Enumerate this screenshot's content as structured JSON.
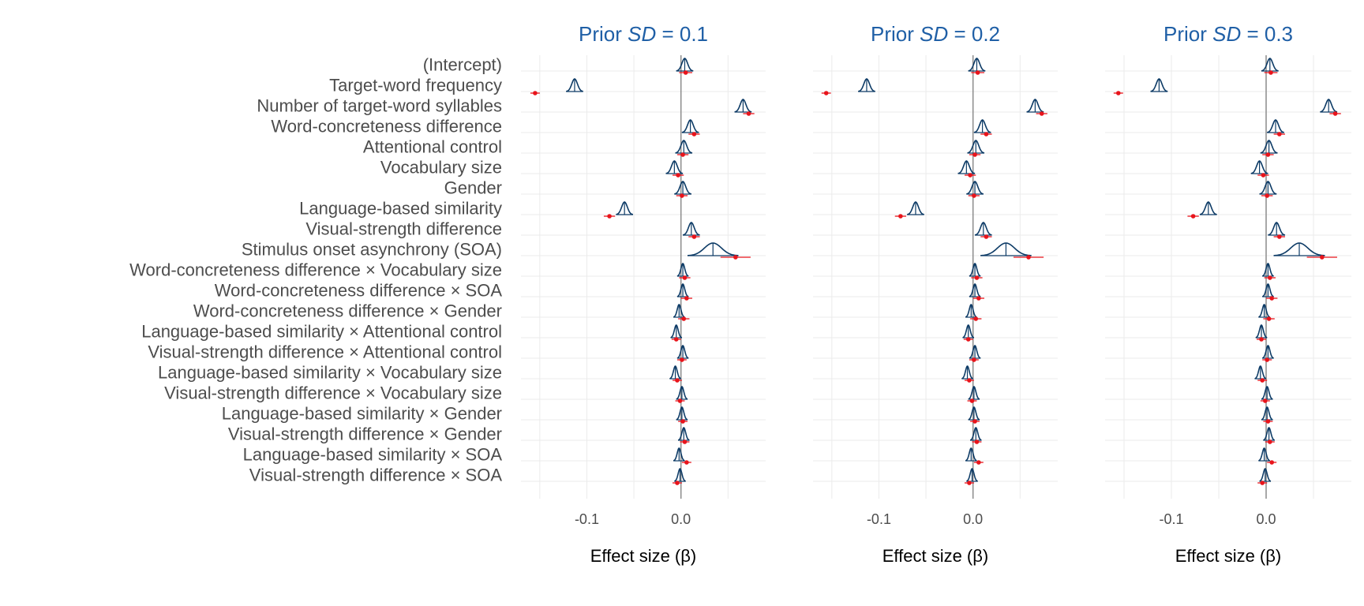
{
  "chart_data": {
    "type": "forest-density",
    "xlabel": "Effect size (β)",
    "x_ticks": [
      -0.1,
      0.0
    ],
    "x_tick_labels": [
      "-0.1",
      "0.0"
    ],
    "xlim": [
      -0.17,
      0.09
    ],
    "grid": true,
    "reference_line_x": 0,
    "colors": {
      "posterior": "#0d3b66",
      "point_estimate": "#e8141b",
      "title": "#1f5fa6",
      "grid": "#ebebeb",
      "zero_line": "#8c8c8c"
    },
    "terms": [
      "(Intercept)",
      "Target-word frequency",
      "Number of target-word syllables",
      "Word-concreteness difference",
      "Attentional control",
      "Vocabulary size",
      "Gender",
      "Language-based similarity",
      "Visual-strength difference",
      "Stimulus onset asynchrony (SOA)",
      "Word-concreteness difference × Vocabulary size",
      "Word-concreteness difference × SOA",
      "Word-concreteness difference × Gender",
      "Language-based similarity × Attentional control",
      "Visual-strength difference × Attentional control",
      "Language-based similarity × Vocabulary size",
      "Visual-strength difference × Vocabulary size",
      "Language-based similarity × Gender",
      "Visual-strength difference × Gender",
      "Language-based similarity × SOA",
      "Visual-strength difference × SOA"
    ],
    "panels": [
      {
        "title_prefix": "Prior ",
        "title_italic": "SD",
        "title_suffix": " = 0.1",
        "posterior_mean": [
          0.004,
          -0.113,
          0.066,
          0.01,
          0.003,
          -0.007,
          0.002,
          -0.06,
          0.011,
          0.034,
          0.002,
          0.002,
          -0.002,
          -0.005,
          0.002,
          -0.006,
          0.001,
          0.001,
          0.003,
          -0.002,
          -0.001
        ],
        "posterior_sd": [
          0.003,
          0.003,
          0.003,
          0.003,
          0.003,
          0.003,
          0.003,
          0.003,
          0.003,
          0.009,
          0.002,
          0.002,
          0.002,
          0.002,
          0.002,
          0.002,
          0.002,
          0.002,
          0.002,
          0.002,
          0.002
        ],
        "estimate": [
          0.005,
          -0.155,
          0.072,
          0.014,
          0.002,
          -0.003,
          0.001,
          -0.076,
          0.014,
          0.058,
          0.004,
          0.006,
          0.003,
          -0.005,
          0.001,
          -0.004,
          -0.001,
          0.002,
          0.004,
          0.006,
          -0.004
        ],
        "ci_low": [
          -0.002,
          -0.16,
          0.066,
          0.008,
          -0.004,
          -0.009,
          -0.005,
          -0.082,
          0.008,
          0.042,
          -0.002,
          0.0,
          -0.003,
          -0.01,
          -0.004,
          -0.009,
          -0.006,
          -0.003,
          -0.001,
          0.001,
          -0.009
        ],
        "ci_high": [
          0.012,
          -0.15,
          0.078,
          0.02,
          0.008,
          0.003,
          0.007,
          -0.07,
          0.02,
          0.074,
          0.01,
          0.012,
          0.009,
          0.0,
          0.006,
          0.001,
          0.004,
          0.007,
          0.009,
          0.011,
          0.001
        ]
      },
      {
        "title_prefix": "Prior ",
        "title_italic": "SD",
        "title_suffix": " = 0.2",
        "posterior_mean": [
          0.004,
          -0.113,
          0.066,
          0.01,
          0.003,
          -0.007,
          0.002,
          -0.061,
          0.011,
          0.035,
          0.002,
          0.002,
          -0.002,
          -0.005,
          0.002,
          -0.006,
          0.001,
          0.001,
          0.003,
          -0.002,
          -0.001
        ],
        "posterior_sd": [
          0.003,
          0.003,
          0.003,
          0.003,
          0.003,
          0.003,
          0.003,
          0.003,
          0.003,
          0.009,
          0.002,
          0.002,
          0.002,
          0.002,
          0.002,
          0.002,
          0.002,
          0.002,
          0.002,
          0.002,
          0.002
        ],
        "estimate": [
          0.005,
          -0.156,
          0.073,
          0.014,
          0.002,
          -0.003,
          0.001,
          -0.077,
          0.014,
          0.059,
          0.004,
          0.006,
          0.003,
          -0.005,
          0.001,
          -0.004,
          -0.001,
          0.002,
          0.004,
          0.006,
          -0.004
        ],
        "ci_low": [
          -0.002,
          -0.161,
          0.067,
          0.008,
          -0.004,
          -0.009,
          -0.005,
          -0.083,
          0.008,
          0.043,
          -0.002,
          0.0,
          -0.003,
          -0.01,
          -0.004,
          -0.009,
          -0.006,
          -0.003,
          -0.001,
          0.001,
          -0.009
        ],
        "ci_high": [
          0.012,
          -0.151,
          0.079,
          0.02,
          0.008,
          0.003,
          0.007,
          -0.071,
          0.02,
          0.075,
          0.01,
          0.012,
          0.009,
          0.0,
          0.006,
          0.001,
          0.004,
          0.007,
          0.009,
          0.011,
          0.001
        ]
      },
      {
        "title_prefix": "Prior ",
        "title_italic": "SD",
        "title_suffix": " = 0.3",
        "posterior_mean": [
          0.004,
          -0.113,
          0.066,
          0.01,
          0.003,
          -0.007,
          0.002,
          -0.061,
          0.011,
          0.035,
          0.002,
          0.002,
          -0.002,
          -0.005,
          0.002,
          -0.006,
          0.001,
          0.001,
          0.003,
          -0.002,
          -0.001
        ],
        "posterior_sd": [
          0.003,
          0.003,
          0.003,
          0.003,
          0.003,
          0.003,
          0.003,
          0.003,
          0.003,
          0.009,
          0.002,
          0.002,
          0.002,
          0.002,
          0.002,
          0.002,
          0.002,
          0.002,
          0.002,
          0.002,
          0.002
        ],
        "estimate": [
          0.005,
          -0.156,
          0.073,
          0.014,
          0.002,
          -0.003,
          0.001,
          -0.077,
          0.014,
          0.059,
          0.004,
          0.006,
          0.003,
          -0.005,
          0.001,
          -0.004,
          -0.001,
          0.002,
          0.004,
          0.006,
          -0.004
        ],
        "ci_low": [
          -0.002,
          -0.161,
          0.067,
          0.008,
          -0.004,
          -0.009,
          -0.005,
          -0.083,
          0.008,
          0.043,
          -0.002,
          0.0,
          -0.003,
          -0.01,
          -0.004,
          -0.009,
          -0.006,
          -0.003,
          -0.001,
          0.001,
          -0.009
        ],
        "ci_high": [
          0.012,
          -0.151,
          0.079,
          0.02,
          0.008,
          0.003,
          0.007,
          -0.071,
          0.02,
          0.075,
          0.01,
          0.012,
          0.009,
          0.0,
          0.006,
          0.001,
          0.004,
          0.007,
          0.009,
          0.011,
          0.001
        ]
      }
    ]
  }
}
